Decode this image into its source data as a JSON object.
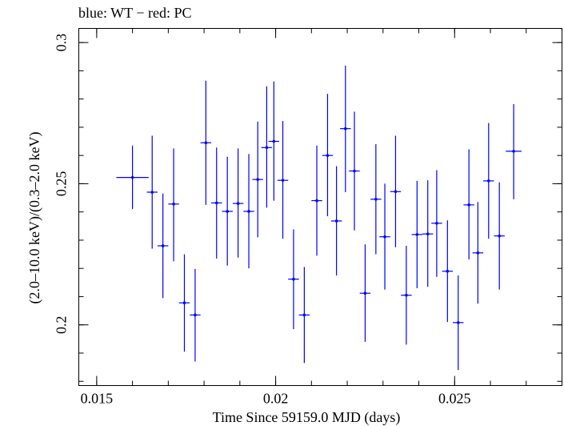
{
  "chart_data": {
    "type": "scatter",
    "title": "blue: WT − red: PC",
    "xlabel": "Time Since 59159.0 MJD (days)",
    "ylabel": "(2.0–10.0 keV)/(0.3–2.0 keV)",
    "xlim": [
      0.0145,
      0.028
    ],
    "ylim": [
      0.1785,
      0.305
    ],
    "xticks": [
      {
        "value": 0.015,
        "label": "0.015"
      },
      {
        "value": 0.02,
        "label": "0.02"
      },
      {
        "value": 0.025,
        "label": "0.025"
      }
    ],
    "yticks": [
      {
        "value": 0.2,
        "label": "0.2"
      },
      {
        "value": 0.25,
        "label": "0.25"
      },
      {
        "value": 0.3,
        "label": "0.3"
      }
    ],
    "grid": false,
    "series": [
      {
        "color": "#0000ff",
        "points": [
          {
            "x": 0.016,
            "xerr": 0.00045,
            "y": 0.2522,
            "ylo": 0.241,
            "yhi": 0.2635
          },
          {
            "x": 0.01655,
            "xerr": 0.00015,
            "y": 0.247,
            "ylo": 0.227,
            "yhi": 0.267
          },
          {
            "x": 0.01685,
            "xerr": 0.00015,
            "y": 0.228,
            "ylo": 0.2095,
            "yhi": 0.2465
          },
          {
            "x": 0.01715,
            "xerr": 0.00015,
            "y": 0.2428,
            "ylo": 0.2225,
            "yhi": 0.2625
          },
          {
            "x": 0.01745,
            "xerr": 0.00015,
            "y": 0.2078,
            "ylo": 0.1905,
            "yhi": 0.225
          },
          {
            "x": 0.01775,
            "xerr": 0.00015,
            "y": 0.2035,
            "ylo": 0.187,
            "yhi": 0.2198
          },
          {
            "x": 0.01805,
            "xerr": 0.00015,
            "y": 0.2645,
            "ylo": 0.2425,
            "yhi": 0.2865
          },
          {
            "x": 0.01835,
            "xerr": 0.00015,
            "y": 0.2432,
            "ylo": 0.2235,
            "yhi": 0.2628
          },
          {
            "x": 0.01865,
            "xerr": 0.00015,
            "y": 0.2402,
            "ylo": 0.221,
            "yhi": 0.2595
          },
          {
            "x": 0.01895,
            "xerr": 0.00015,
            "y": 0.243,
            "ylo": 0.2238,
            "yhi": 0.2625
          },
          {
            "x": 0.01925,
            "xerr": 0.00015,
            "y": 0.2402,
            "ylo": 0.22,
            "yhi": 0.2605
          },
          {
            "x": 0.0195,
            "xerr": 0.00015,
            "y": 0.2515,
            "ylo": 0.231,
            "yhi": 0.272
          },
          {
            "x": 0.01975,
            "xerr": 0.00015,
            "y": 0.2628,
            "ylo": 0.2415,
            "yhi": 0.2845
          },
          {
            "x": 0.01995,
            "xerr": 0.00015,
            "y": 0.265,
            "ylo": 0.244,
            "yhi": 0.2862
          },
          {
            "x": 0.0202,
            "xerr": 0.00015,
            "y": 0.2512,
            "ylo": 0.2305,
            "yhi": 0.2722
          },
          {
            "x": 0.0205,
            "xerr": 0.00015,
            "y": 0.2162,
            "ylo": 0.1985,
            "yhi": 0.2338
          },
          {
            "x": 0.0208,
            "xerr": 0.00015,
            "y": 0.2035,
            "ylo": 0.1865,
            "yhi": 0.2205
          },
          {
            "x": 0.02115,
            "xerr": 0.00015,
            "y": 0.244,
            "ylo": 0.2245,
            "yhi": 0.2635
          },
          {
            "x": 0.02145,
            "xerr": 0.00015,
            "y": 0.26,
            "ylo": 0.2385,
            "yhi": 0.2818
          },
          {
            "x": 0.0217,
            "xerr": 0.00015,
            "y": 0.2368,
            "ylo": 0.2175,
            "yhi": 0.2562
          },
          {
            "x": 0.02195,
            "xerr": 0.00015,
            "y": 0.2695,
            "ylo": 0.247,
            "yhi": 0.2918
          },
          {
            "x": 0.0222,
            "xerr": 0.00015,
            "y": 0.2545,
            "ylo": 0.2335,
            "yhi": 0.2755
          },
          {
            "x": 0.0225,
            "xerr": 0.00015,
            "y": 0.2112,
            "ylo": 0.194,
            "yhi": 0.2285
          },
          {
            "x": 0.0228,
            "xerr": 0.00015,
            "y": 0.2445,
            "ylo": 0.225,
            "yhi": 0.264
          },
          {
            "x": 0.02305,
            "xerr": 0.00015,
            "y": 0.2312,
            "ylo": 0.2125,
            "yhi": 0.25
          },
          {
            "x": 0.02335,
            "xerr": 0.00015,
            "y": 0.2472,
            "ylo": 0.2275,
            "yhi": 0.267
          },
          {
            "x": 0.02365,
            "xerr": 0.00015,
            "y": 0.2105,
            "ylo": 0.193,
            "yhi": 0.228
          },
          {
            "x": 0.02395,
            "xerr": 0.00015,
            "y": 0.232,
            "ylo": 0.213,
            "yhi": 0.251
          },
          {
            "x": 0.02425,
            "xerr": 0.00015,
            "y": 0.2322,
            "ylo": 0.2135,
            "yhi": 0.2512
          },
          {
            "x": 0.0245,
            "xerr": 0.00015,
            "y": 0.236,
            "ylo": 0.217,
            "yhi": 0.2548
          },
          {
            "x": 0.0248,
            "xerr": 0.00015,
            "y": 0.219,
            "ylo": 0.201,
            "yhi": 0.237
          },
          {
            "x": 0.0251,
            "xerr": 0.00015,
            "y": 0.2008,
            "ylo": 0.184,
            "yhi": 0.2175
          },
          {
            "x": 0.0254,
            "xerr": 0.00015,
            "y": 0.2425,
            "ylo": 0.2232,
            "yhi": 0.2622
          },
          {
            "x": 0.02565,
            "xerr": 0.00015,
            "y": 0.2255,
            "ylo": 0.2075,
            "yhi": 0.2435
          },
          {
            "x": 0.02595,
            "xerr": 0.00015,
            "y": 0.251,
            "ylo": 0.2305,
            "yhi": 0.2715
          },
          {
            "x": 0.02625,
            "xerr": 0.00015,
            "y": 0.2315,
            "ylo": 0.2125,
            "yhi": 0.2505
          },
          {
            "x": 0.02665,
            "xerr": 0.00022,
            "y": 0.2615,
            "ylo": 0.2445,
            "yhi": 0.2782
          }
        ]
      }
    ]
  }
}
